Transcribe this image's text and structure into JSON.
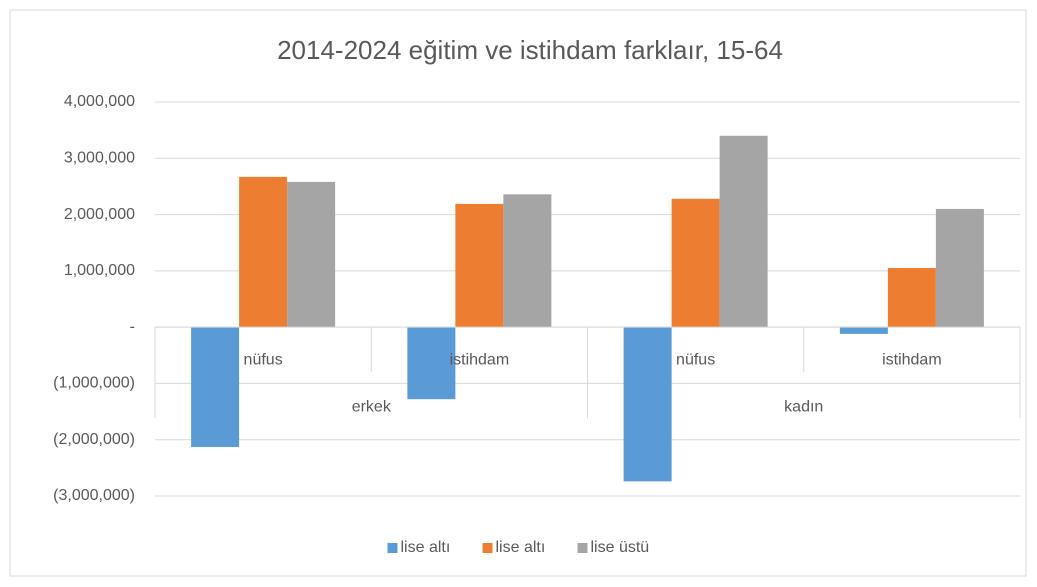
{
  "chart_data": {
    "type": "bar",
    "title": "2014-2024 eğitim ve istihdam farklaır,  15-64",
    "categories": [
      "nüfus",
      "istihdam",
      "nüfus",
      "istihdam"
    ],
    "category_groups": [
      "erkek",
      "kadın"
    ],
    "series": [
      {
        "name": "lise altı",
        "color": "#5b9bd5",
        "values": [
          -2130000,
          -1280000,
          -2740000,
          -120000
        ]
      },
      {
        "name": "lise altı",
        "color": "#ed7d31",
        "values": [
          2670000,
          2190000,
          2280000,
          1050000
        ]
      },
      {
        "name": "lise üstü",
        "color": "#a5a5a5",
        "values": [
          2580000,
          2360000,
          3400000,
          2100000
        ]
      }
    ],
    "ylim": [
      -3000000,
      4000000
    ],
    "yticks": [
      {
        "value": -3000000,
        "label": "(3,000,000)"
      },
      {
        "value": -2000000,
        "label": "(2,000,000)"
      },
      {
        "value": -1000000,
        "label": "(1,000,000)"
      },
      {
        "value": 0,
        "label": "-"
      },
      {
        "value": 1000000,
        "label": "1,000,000"
      },
      {
        "value": 2000000,
        "label": "2,000,000"
      },
      {
        "value": 3000000,
        "label": "3,000,000"
      },
      {
        "value": 4000000,
        "label": "4,000,000"
      }
    ],
    "grid": true,
    "legend": "bottom"
  }
}
